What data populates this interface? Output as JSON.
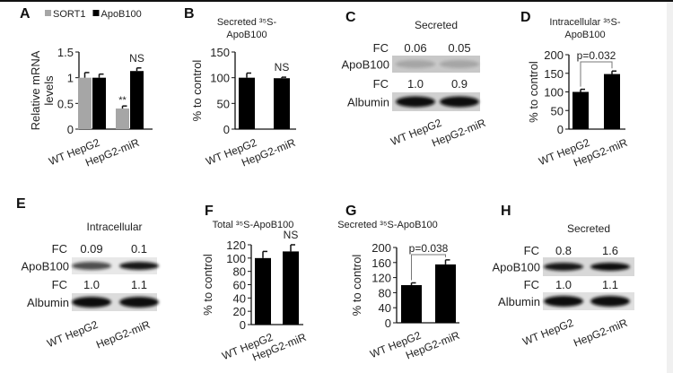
{
  "chart_data": [
    {
      "panel": "A",
      "type": "bar",
      "title": "",
      "ylabel": [
        "Relative mRNA",
        "levels"
      ],
      "categories": [
        "WT HepG2",
        "HepG2-miR"
      ],
      "series": [
        {
          "name": "SORT1",
          "values": [
            1.0,
            0.4
          ],
          "errors": [
            0.1,
            0.05
          ],
          "color": "#a6a6a6"
        },
        {
          "name": "ApoB100",
          "values": [
            1.0,
            1.13
          ],
          "errors": [
            0.07,
            0.06
          ],
          "color": "#000000"
        }
      ],
      "ylim": [
        0,
        1.5
      ],
      "yticks": [
        "0",
        "0.5",
        "1",
        "1.5"
      ],
      "legend": "top",
      "annotations": [
        {
          "text": "**",
          "category": 1,
          "series": 0
        },
        {
          "text": "NS",
          "category": 1,
          "series": 1
        }
      ]
    },
    {
      "panel": "B",
      "type": "bar",
      "title": [
        "Secreted ³⁵S-",
        "ApoB100"
      ],
      "ylabel": [
        "% to control"
      ],
      "categories": [
        "WT HepG2",
        "HepG2-miR"
      ],
      "series": [
        {
          "values": [
            100,
            99
          ],
          "errors": [
            9,
            2
          ],
          "color": "#000000"
        }
      ],
      "ylim": [
        0,
        150
      ],
      "yticks": [
        "0",
        "50",
        "100",
        "150"
      ],
      "annotations": [
        {
          "text": "NS",
          "category": 1,
          "series": 0
        }
      ]
    },
    {
      "panel": "D",
      "type": "bar",
      "title": [
        "Intracellular ³⁵S-",
        "ApoB100"
      ],
      "ylabel": [
        "% to control"
      ],
      "categories": [
        "WT HepG2",
        "HepG2-miR"
      ],
      "series": [
        {
          "values": [
            100,
            148
          ],
          "errors": [
            7,
            8
          ],
          "color": "#000000"
        }
      ],
      "ylim": [
        0,
        200
      ],
      "yticks": [
        "0",
        "50",
        "100",
        "150",
        "200"
      ],
      "bracket": "p=0.032"
    },
    {
      "panel": "F",
      "type": "bar",
      "title": [
        "Total ³⁵S-ApoB100"
      ],
      "ylabel": [
        "% to control"
      ],
      "categories": [
        "WT HepG2",
        "HepG2-miR"
      ],
      "series": [
        {
          "values": [
            100,
            110
          ],
          "errors": [
            10,
            10
          ],
          "color": "#000000"
        }
      ],
      "ylim": [
        0,
        120
      ],
      "yticks": [
        "0",
        "20",
        "40",
        "60",
        "80",
        "100",
        "120"
      ],
      "annotations": [
        {
          "text": "NS",
          "category": 1,
          "series": 0
        }
      ]
    },
    {
      "panel": "G",
      "type": "bar",
      "title": [
        "Secreted ³⁵S-ApoB100"
      ],
      "ylabel": [
        "% to control"
      ],
      "categories": [
        "WT HepG2",
        "HepG2-miR"
      ],
      "series": [
        {
          "values": [
            100,
            155
          ],
          "errors": [
            6,
            12
          ],
          "color": "#000000"
        }
      ],
      "ylim": [
        0,
        200
      ],
      "yticks": [
        "0",
        "40",
        "80",
        "120",
        "160",
        "200"
      ],
      "bracket": "p=0.038"
    }
  ],
  "blots": [
    {
      "panel": "C",
      "title": "Secreted",
      "lanes": [
        "WT HepG2",
        "HepG2-miR"
      ],
      "rows": [
        {
          "fc_label": "FC",
          "fc": [
            "0.06",
            "0.05"
          ],
          "band": "ApoB100"
        },
        {
          "fc_label": "FC",
          "fc": [
            "1.0",
            "0.9"
          ],
          "band": "Albumin"
        }
      ]
    },
    {
      "panel": "E",
      "title": "Intracellular",
      "lanes": [
        "WT HepG2",
        "HepG2-miR"
      ],
      "rows": [
        {
          "fc_label": "FC",
          "fc": [
            "0.09",
            "0.1"
          ],
          "band": "ApoB100"
        },
        {
          "fc_label": "FC",
          "fc": [
            "1.0",
            "1.1"
          ],
          "band": "Albumin"
        }
      ]
    },
    {
      "panel": "H",
      "title": "Secreted",
      "lanes": [
        "WT HepG2",
        "HepG2-miR"
      ],
      "rows": [
        {
          "fc_label": "FC",
          "fc": [
            "0.8",
            "1.6"
          ],
          "band": "ApoB100"
        },
        {
          "fc_label": "FC",
          "fc": [
            "1.0",
            "1.1"
          ],
          "band": "Albumin"
        }
      ]
    }
  ]
}
